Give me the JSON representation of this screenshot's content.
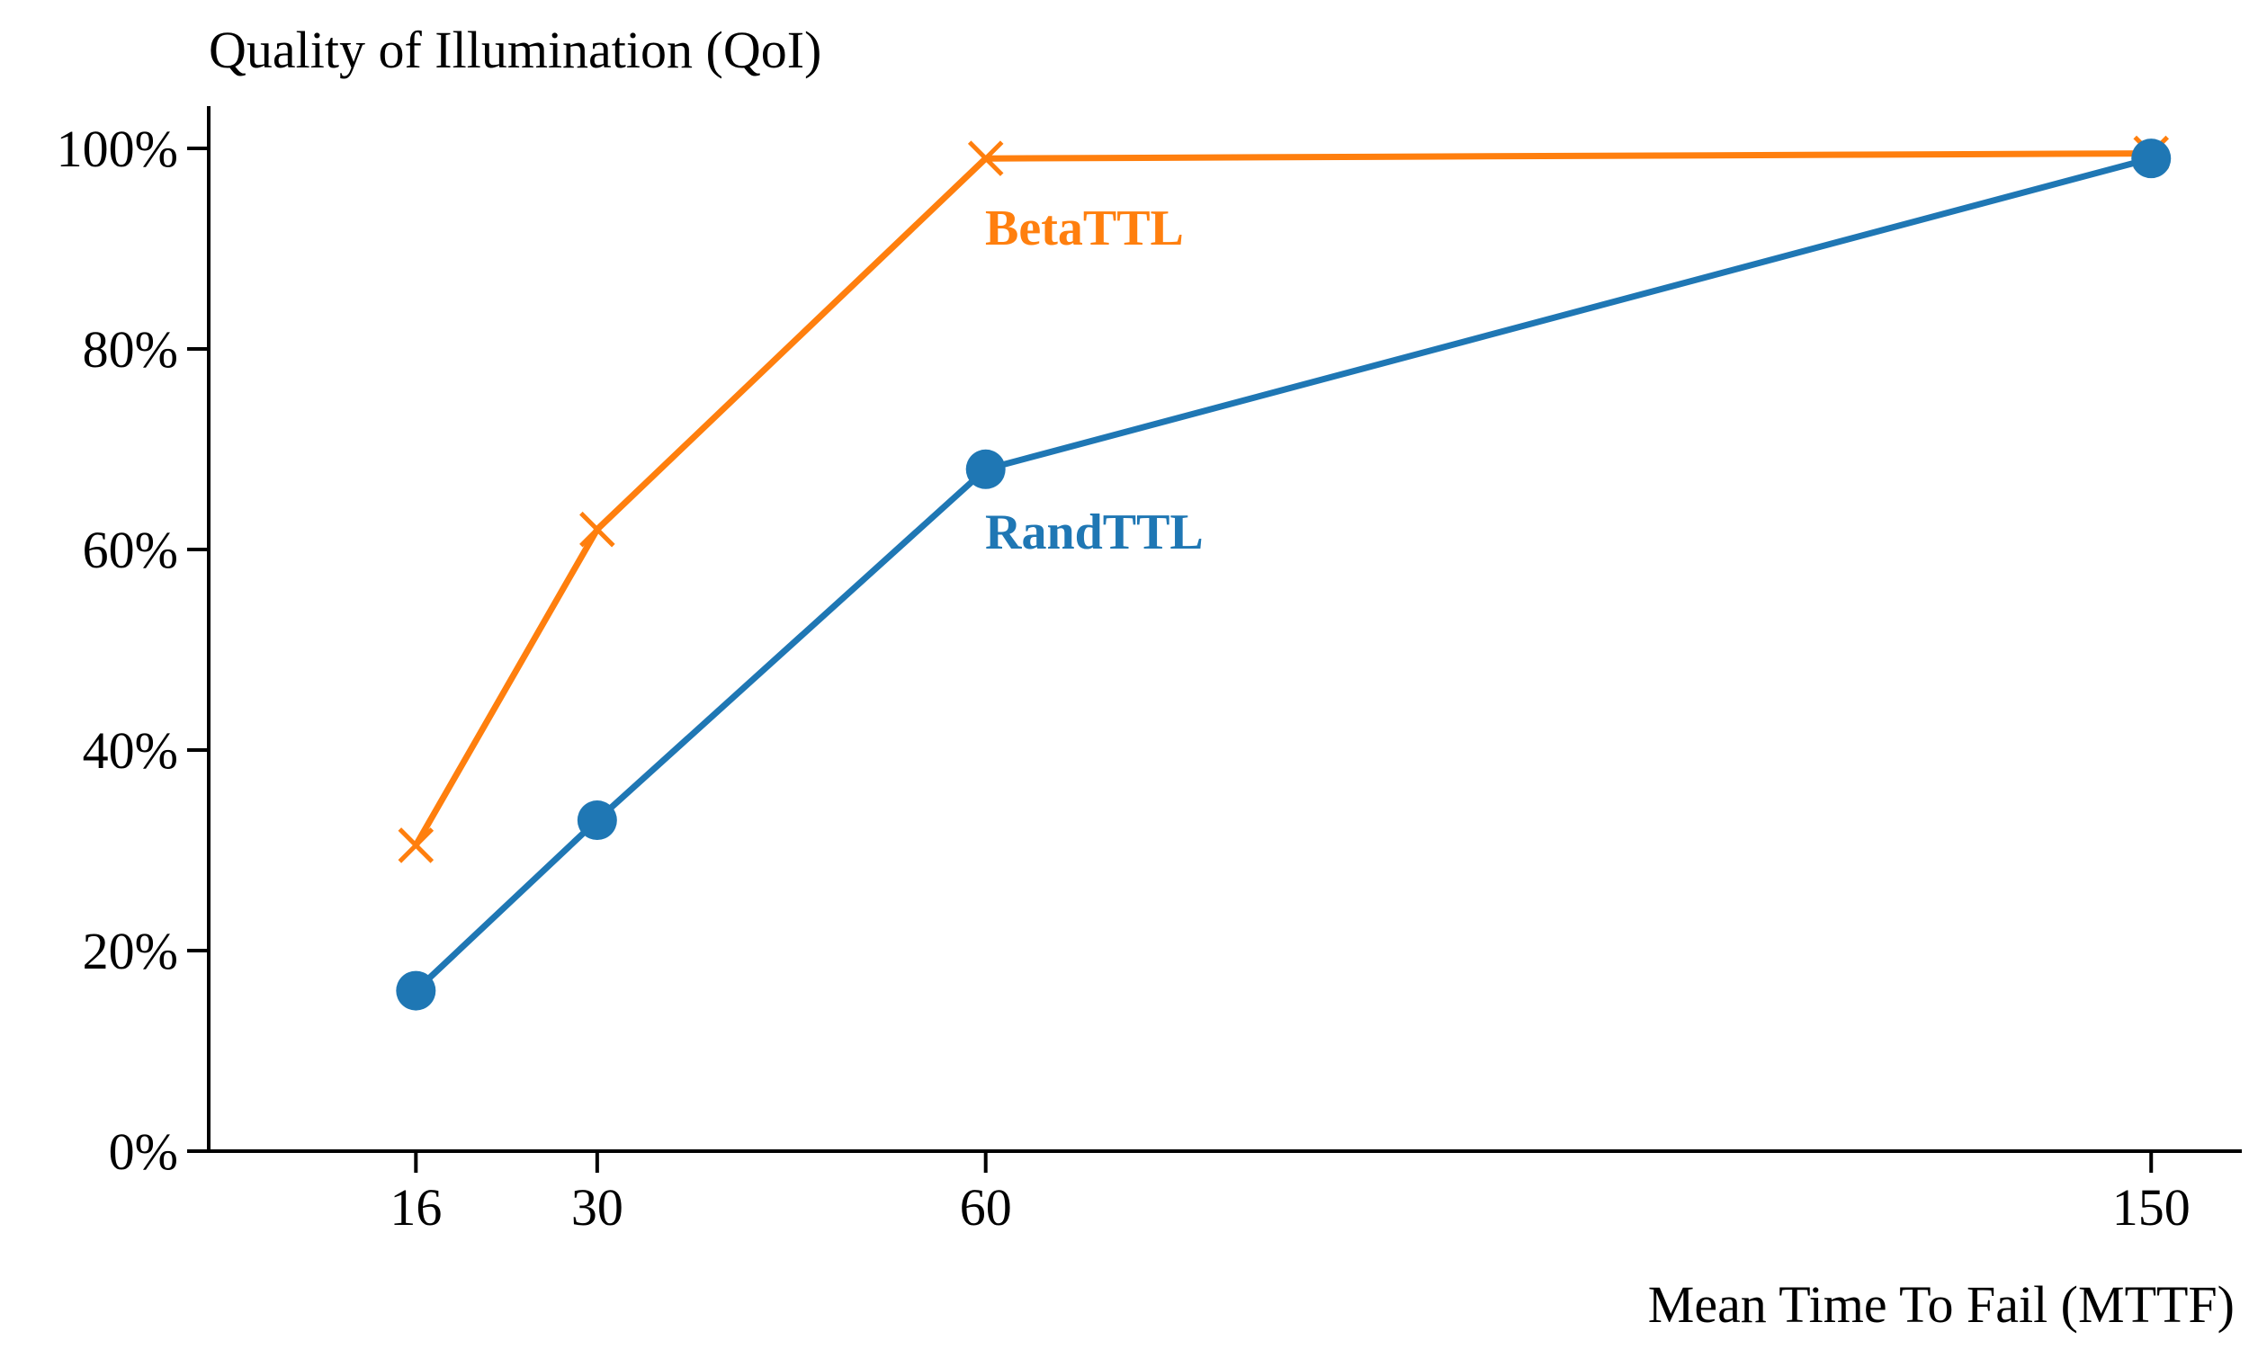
{
  "chart_data": {
    "type": "line",
    "title": "Quality of Illumination (QoI)",
    "xlabel": "Mean Time To Fail (MTTF)",
    "ylabel": "",
    "x": [
      16,
      30,
      60,
      150
    ],
    "x_tick_labels": [
      "16",
      "30",
      "60",
      "150"
    ],
    "xlim": [
      0,
      157
    ],
    "y_ticks": [
      0,
      20,
      40,
      60,
      80,
      100
    ],
    "y_tick_labels": [
      "0%",
      "20%",
      "40%",
      "60%",
      "80%",
      "100%"
    ],
    "ylim": [
      0,
      104
    ],
    "grid": false,
    "legend": "none (series labeled inline)",
    "series": [
      {
        "name": "BetaTTL",
        "values": [
          30.5,
          62,
          99,
          99.5
        ],
        "color": "#ff7f0e",
        "marker": "x"
      },
      {
        "name": "RandTTL",
        "values": [
          16,
          33,
          68,
          99
        ],
        "color": "#1f77b4",
        "marker": "circle"
      }
    ]
  }
}
